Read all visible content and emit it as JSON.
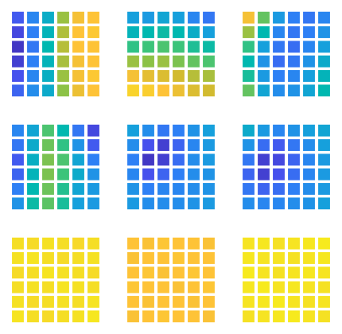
{
  "chart_data": [
    {
      "type": "heatmap",
      "xlim": [
        0,
        6
      ],
      "ylim": [
        0,
        6
      ],
      "tick_labels": false,
      "grid": false,
      "cells": [
        [
          0.12,
          0.22,
          0.35,
          0.62,
          0.78,
          0.8
        ],
        [
          0.08,
          0.2,
          0.38,
          0.65,
          0.8,
          0.82
        ],
        [
          0.04,
          0.18,
          0.4,
          0.66,
          0.8,
          0.8
        ],
        [
          0.06,
          0.2,
          0.38,
          0.64,
          0.78,
          0.8
        ],
        [
          0.1,
          0.22,
          0.36,
          0.62,
          0.78,
          0.82
        ],
        [
          0.14,
          0.24,
          0.34,
          0.6,
          0.76,
          0.8
        ]
      ]
    },
    {
      "type": "heatmap",
      "xlim": [
        0,
        6
      ],
      "ylim": [
        0,
        6
      ],
      "tick_labels": false,
      "grid": false,
      "cells": [
        [
          0.3,
          0.28,
          0.32,
          0.3,
          0.22,
          0.18
        ],
        [
          0.38,
          0.4,
          0.42,
          0.4,
          0.35,
          0.3
        ],
        [
          0.48,
          0.5,
          0.52,
          0.5,
          0.45,
          0.42
        ],
        [
          0.62,
          0.6,
          0.62,
          0.58,
          0.55,
          0.52
        ],
        [
          0.78,
          0.74,
          0.72,
          0.7,
          0.66,
          0.64
        ],
        [
          0.86,
          0.84,
          0.8,
          0.76,
          0.72,
          0.7
        ]
      ]
    },
    {
      "type": "heatmap",
      "xlim": [
        0,
        6
      ],
      "ylim": [
        0,
        6
      ],
      "tick_labels": false,
      "grid": false,
      "cells": [
        [
          0.78,
          0.55,
          0.28,
          0.2,
          0.18,
          0.22
        ],
        [
          0.62,
          0.4,
          0.22,
          0.18,
          0.2,
          0.26
        ],
        [
          0.48,
          0.3,
          0.18,
          0.16,
          0.22,
          0.3
        ],
        [
          0.4,
          0.26,
          0.16,
          0.18,
          0.26,
          0.34
        ],
        [
          0.44,
          0.28,
          0.2,
          0.22,
          0.3,
          0.38
        ],
        [
          0.55,
          0.32,
          0.24,
          0.26,
          0.32,
          0.4
        ]
      ]
    },
    {
      "type": "heatmap",
      "xlim": [
        0,
        6
      ],
      "ylim": [
        0,
        6
      ],
      "tick_labels": false,
      "grid": false,
      "cells": [
        [
          0.22,
          0.32,
          0.52,
          0.4,
          0.18,
          0.08
        ],
        [
          0.18,
          0.34,
          0.56,
          0.48,
          0.26,
          0.12
        ],
        [
          0.12,
          0.36,
          0.58,
          0.52,
          0.32,
          0.2
        ],
        [
          0.14,
          0.38,
          0.58,
          0.5,
          0.34,
          0.26
        ],
        [
          0.2,
          0.4,
          0.56,
          0.46,
          0.32,
          0.28
        ],
        [
          0.26,
          0.42,
          0.54,
          0.44,
          0.3,
          0.28
        ]
      ]
    },
    {
      "type": "heatmap",
      "xlim": [
        0,
        6
      ],
      "ylim": [
        0,
        6
      ],
      "tick_labels": false,
      "grid": false,
      "cells": [
        [
          0.3,
          0.24,
          0.18,
          0.2,
          0.26,
          0.3
        ],
        [
          0.24,
          0.1,
          0.06,
          0.14,
          0.22,
          0.28
        ],
        [
          0.2,
          0.04,
          0.06,
          0.16,
          0.24,
          0.28
        ],
        [
          0.22,
          0.1,
          0.14,
          0.2,
          0.24,
          0.26
        ],
        [
          0.26,
          0.2,
          0.22,
          0.22,
          0.24,
          0.26
        ],
        [
          0.28,
          0.24,
          0.24,
          0.24,
          0.26,
          0.28
        ]
      ]
    },
    {
      "type": "heatmap",
      "xlim": [
        0,
        6
      ],
      "ylim": [
        0,
        6
      ],
      "tick_labels": false,
      "grid": false,
      "cells": [
        [
          0.34,
          0.28,
          0.22,
          0.26,
          0.3,
          0.32
        ],
        [
          0.26,
          0.16,
          0.12,
          0.18,
          0.24,
          0.3
        ],
        [
          0.18,
          0.06,
          0.08,
          0.14,
          0.22,
          0.28
        ],
        [
          0.14,
          0.06,
          0.1,
          0.16,
          0.22,
          0.28
        ],
        [
          0.18,
          0.14,
          0.16,
          0.2,
          0.24,
          0.28
        ],
        [
          0.24,
          0.22,
          0.22,
          0.24,
          0.26,
          0.3
        ]
      ]
    },
    {
      "type": "heatmap",
      "xlim": [
        0,
        6
      ],
      "ylim": [
        0,
        6
      ],
      "tick_labels": false,
      "grid": false,
      "cells": [
        [
          0.9,
          0.89,
          0.91,
          0.9,
          0.88,
          0.9
        ],
        [
          0.91,
          0.92,
          0.9,
          0.89,
          0.9,
          0.91
        ],
        [
          0.89,
          0.9,
          0.92,
          0.91,
          0.9,
          0.89
        ],
        [
          0.9,
          0.91,
          0.9,
          0.92,
          0.91,
          0.9
        ],
        [
          0.91,
          0.89,
          0.9,
          0.91,
          0.9,
          0.92
        ],
        [
          0.92,
          0.9,
          0.89,
          0.9,
          0.91,
          0.93
        ]
      ]
    },
    {
      "type": "heatmap",
      "xlim": [
        0,
        6
      ],
      "ylim": [
        0,
        6
      ],
      "tick_labels": false,
      "grid": false,
      "cells": [
        [
          0.8,
          0.79,
          0.81,
          0.8,
          0.8,
          0.79
        ],
        [
          0.79,
          0.8,
          0.8,
          0.81,
          0.8,
          0.8
        ],
        [
          0.8,
          0.81,
          0.79,
          0.8,
          0.81,
          0.8
        ],
        [
          0.81,
          0.8,
          0.8,
          0.79,
          0.8,
          0.81
        ],
        [
          0.8,
          0.79,
          0.8,
          0.8,
          0.79,
          0.8
        ],
        [
          0.79,
          0.8,
          0.81,
          0.8,
          0.8,
          0.79
        ]
      ]
    },
    {
      "type": "heatmap",
      "xlim": [
        0,
        6
      ],
      "ylim": [
        0,
        6
      ],
      "tick_labels": false,
      "grid": false,
      "cells": [
        [
          0.92,
          0.93,
          0.91,
          0.92,
          0.93,
          0.94
        ],
        [
          0.93,
          0.92,
          0.92,
          0.91,
          0.92,
          0.93
        ],
        [
          0.94,
          0.92,
          0.91,
          0.92,
          0.93,
          0.92
        ],
        [
          0.93,
          0.94,
          0.92,
          0.93,
          0.92,
          0.91
        ],
        [
          0.92,
          0.93,
          0.94,
          0.92,
          0.91,
          0.92
        ],
        [
          0.91,
          0.92,
          0.93,
          0.94,
          0.92,
          0.91
        ]
      ]
    }
  ]
}
